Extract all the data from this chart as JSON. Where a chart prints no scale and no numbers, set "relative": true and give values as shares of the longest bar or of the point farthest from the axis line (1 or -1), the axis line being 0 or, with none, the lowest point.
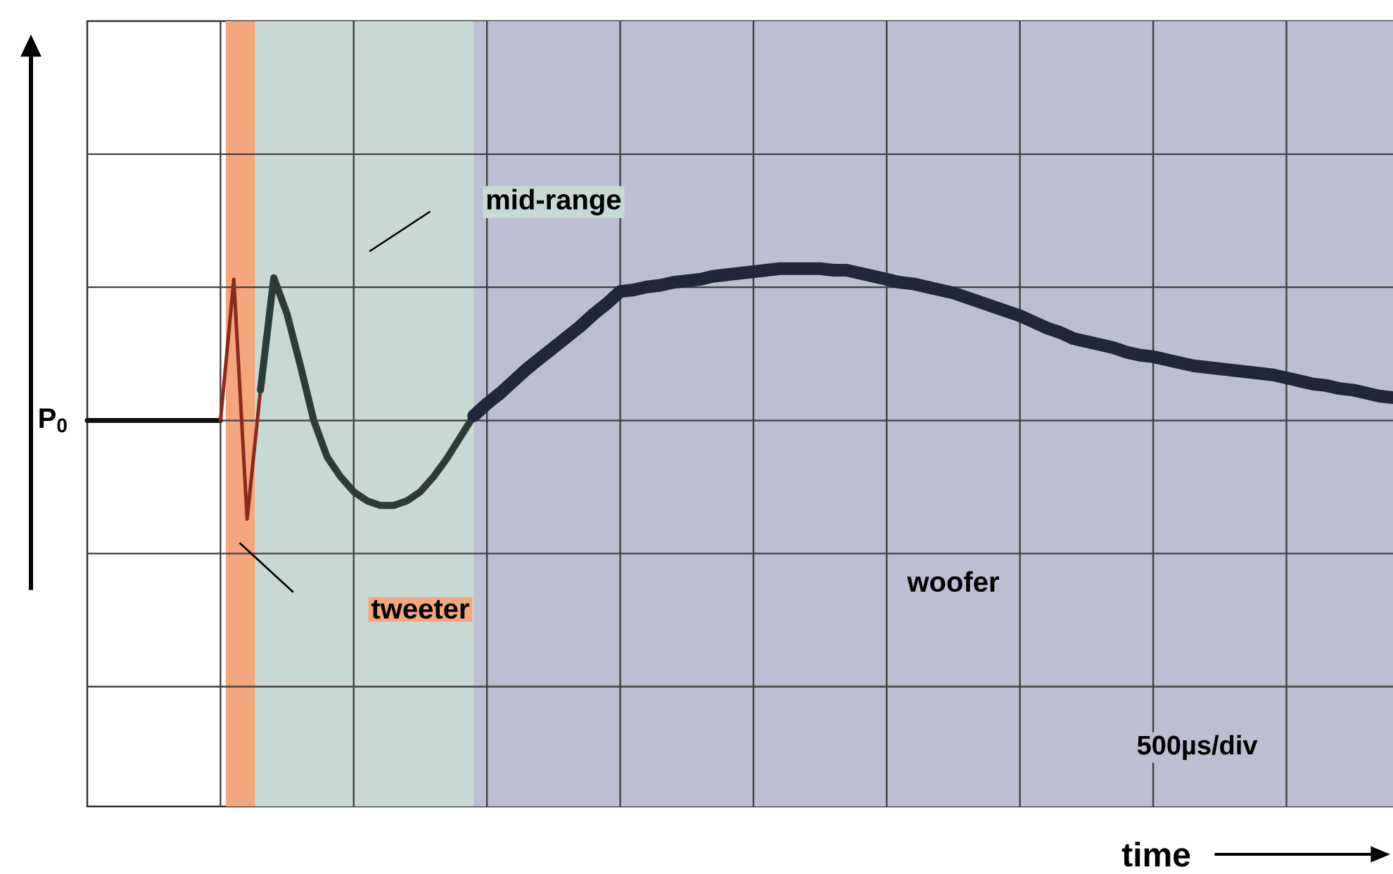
{
  "chart_data": {
    "type": "line",
    "relative": true,
    "categories": [
      null,
      null,
      null,
      null,
      null,
      null,
      null,
      null,
      null,
      null,
      null,
      null,
      null,
      null,
      null,
      null,
      null,
      null,
      null,
      null,
      null,
      null,
      null,
      null,
      null,
      null,
      null,
      null,
      null,
      null,
      null,
      null,
      null,
      null,
      null,
      null,
      null,
      null,
      null,
      null,
      null,
      null,
      null,
      null,
      null,
      null,
      null,
      null,
      null,
      null,
      null,
      null,
      null,
      null,
      null,
      null,
      null,
      null,
      null,
      null,
      null,
      null,
      null,
      null,
      null,
      null,
      null,
      null,
      null,
      null,
      null,
      null,
      null,
      null,
      null,
      null,
      null,
      null,
      null,
      null,
      null,
      null,
      null,
      null,
      null,
      null,
      null,
      null,
      null,
      null,
      null,
      null,
      null,
      null,
      null,
      null,
      null,
      null,
      null
    ],
    "grid": true,
    "series": [
      {
        "color": "#111111",
        "values": [
          0,
          0,
          0,
          0,
          0,
          0,
          0,
          0,
          0,
          0,
          0,
          null,
          null,
          null,
          null,
          null,
          null,
          null,
          null,
          null,
          null,
          null,
          null,
          null,
          null,
          null,
          null,
          null,
          null,
          null,
          null,
          null,
          null,
          null,
          null,
          null,
          null,
          null,
          null,
          null,
          null,
          null,
          null,
          null,
          null,
          null,
          null,
          null,
          null,
          null,
          null,
          null,
          null,
          null,
          null,
          null,
          null,
          null,
          null,
          null,
          null,
          null,
          null,
          null,
          null,
          null,
          null,
          null,
          null,
          null,
          null,
          null,
          null,
          null,
          null,
          null,
          null,
          null,
          null,
          null,
          null,
          null,
          null,
          null,
          null,
          null,
          null,
          null,
          null,
          null,
          null,
          null,
          null,
          null,
          null,
          null,
          null,
          null,
          null
        ]
      },
      {
        "color": "#8b2a1a",
        "values": [
          null,
          null,
          null,
          null,
          null,
          null,
          null,
          null,
          null,
          null,
          0,
          0.93,
          -0.65,
          0.2,
          null,
          null,
          null,
          null,
          null,
          null,
          null,
          null,
          null,
          null,
          null,
          null,
          null,
          null,
          null,
          null,
          null,
          null,
          null,
          null,
          null,
          null,
          null,
          null,
          null,
          null,
          null,
          null,
          null,
          null,
          null,
          null,
          null,
          null,
          null,
          null,
          null,
          null,
          null,
          null,
          null,
          null,
          null,
          null,
          null,
          null,
          null,
          null,
          null,
          null,
          null,
          null,
          null,
          null,
          null,
          null,
          null,
          null,
          null,
          null,
          null,
          null,
          null,
          null,
          null,
          null,
          null,
          null,
          null,
          null,
          null,
          null,
          null,
          null,
          null,
          null,
          null,
          null,
          null,
          null,
          null,
          null,
          null,
          null,
          null
        ]
      },
      {
        "color": "#2d3b36",
        "values": [
          null,
          null,
          null,
          null,
          null,
          null,
          null,
          null,
          null,
          null,
          null,
          null,
          null,
          0.2,
          0.94,
          0.7,
          0.36,
          0,
          -0.24,
          -0.37,
          -0.47,
          -0.53,
          -0.56,
          -0.56,
          -0.53,
          -0.47,
          -0.37,
          -0.25,
          -0.11,
          0.03,
          null,
          null,
          null,
          null,
          null,
          null,
          null,
          null,
          null,
          null,
          null,
          null,
          null,
          null,
          null,
          null,
          null,
          null,
          null,
          null,
          null,
          null,
          null,
          null,
          null,
          null,
          null,
          null,
          null,
          null,
          null,
          null,
          null,
          null,
          null,
          null,
          null,
          null,
          null,
          null,
          null,
          null,
          null,
          null,
          null,
          null,
          null,
          null,
          null,
          null,
          null,
          null,
          null,
          null,
          null,
          null,
          null,
          null,
          null,
          null,
          null,
          null,
          null,
          null,
          null,
          null,
          null,
          null,
          null
        ]
      },
      {
        "color": "#22263a",
        "values": [
          null,
          null,
          null,
          null,
          null,
          null,
          null,
          null,
          null,
          null,
          null,
          null,
          null,
          null,
          null,
          null,
          null,
          null,
          null,
          null,
          null,
          null,
          null,
          null,
          null,
          null,
          null,
          null,
          null,
          0.03,
          0.11,
          0.18,
          0.26,
          0.34,
          0.41,
          0.48,
          0.55,
          0.62,
          0.7,
          0.77,
          0.85,
          0.86,
          0.88,
          0.89,
          0.91,
          0.92,
          0.93,
          0.95,
          0.96,
          0.97,
          0.98,
          0.99,
          1,
          1,
          1,
          1,
          0.99,
          0.99,
          0.97,
          0.95,
          0.93,
          0.91,
          0.9,
          0.88,
          0.86,
          0.84,
          0.81,
          0.78,
          0.75,
          0.72,
          0.69,
          0.65,
          0.61,
          0.58,
          0.54,
          0.52,
          0.5,
          0.48,
          0.45,
          0.43,
          0.42,
          0.4,
          0.38,
          0.36,
          0.35,
          0.34,
          0.33,
          0.32,
          0.31,
          0.3,
          0.28,
          0.26,
          0.24,
          0.23,
          0.21,
          0.2,
          0.18,
          0.16,
          0.15
        ]
      }
    ],
    "annotations": [
      "P$_{0}$",
      "500µs/div",
      "time",
      "tweeter",
      "mid-range",
      "woofer"
    ]
  }
}
